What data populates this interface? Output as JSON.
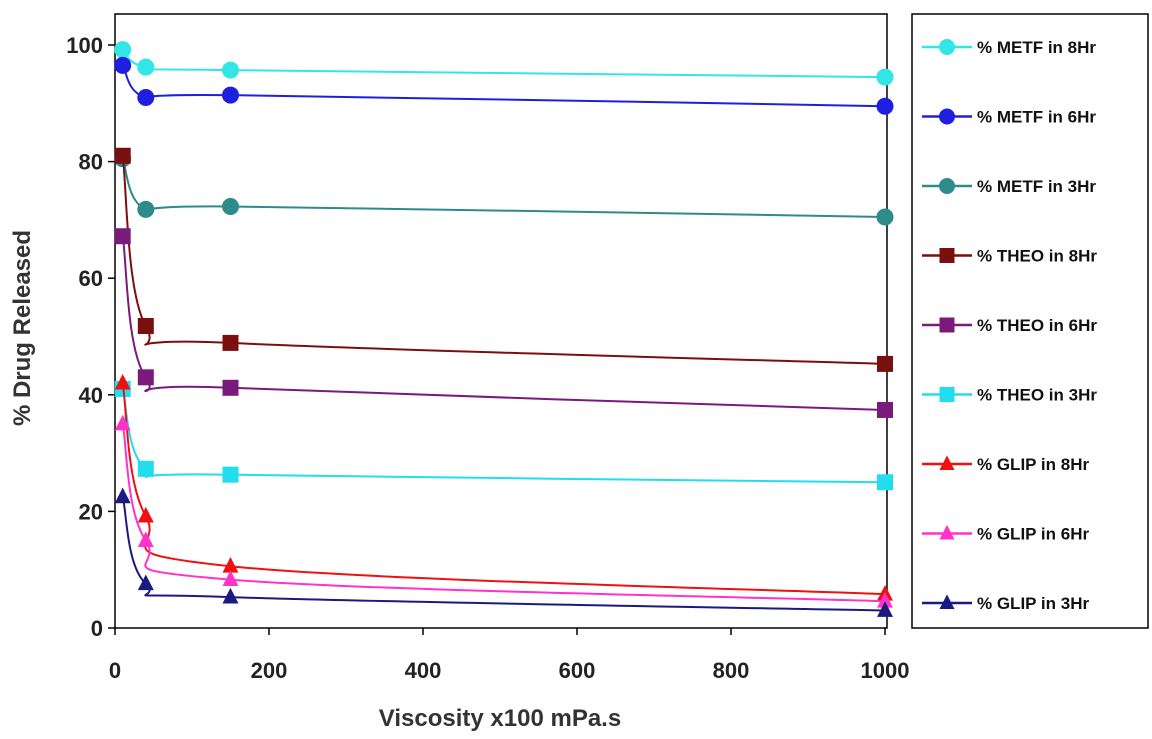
{
  "chart_data": {
    "type": "line",
    "title": "",
    "xlabel": "Viscosity x100 mPa.s",
    "ylabel": "% Drug Released",
    "xlim": [
      0,
      1000
    ],
    "ylim": [
      0,
      100
    ],
    "xticks": [
      "0",
      "200",
      "400",
      "600",
      "800",
      "1000"
    ],
    "yticks": [
      "0",
      "20",
      "40",
      "60",
      "80",
      "100"
    ],
    "grid": false,
    "legend_position": "right",
    "x": [
      10,
      40,
      150,
      1000
    ],
    "series": [
      {
        "name": "% METF  in 8Hr",
        "marker": "circle",
        "color": "#33E6E6",
        "values": [
          99.2,
          96.2,
          95.7,
          94.5
        ]
      },
      {
        "name": "% METF  in 6Hr",
        "marker": "circle",
        "color": "#1F1FE0",
        "values": [
          96.5,
          91.0,
          91.4,
          89.5
        ]
      },
      {
        "name": "% METF in 3Hr",
        "marker": "circle",
        "color": "#2E8B8B",
        "values": [
          80.5,
          71.8,
          72.3,
          70.5
        ]
      },
      {
        "name": "% THEO in 8Hr",
        "marker": "square",
        "color": "#7A0F0F",
        "values": [
          81.0,
          51.8,
          48.9,
          45.3
        ]
      },
      {
        "name": "% THEO in 6Hr",
        "marker": "square",
        "color": "#7A1A7A",
        "values": [
          67.2,
          43.0,
          41.2,
          37.4
        ]
      },
      {
        "name": "% THEO in 3Hr",
        "marker": "square",
        "color": "#22DDEE",
        "values": [
          41.0,
          27.3,
          26.3,
          25.0
        ]
      },
      {
        "name": "% GLIP in 8Hr",
        "marker": "triangle",
        "color": "#EE1111",
        "values": [
          42.0,
          19.2,
          10.6,
          5.8
        ]
      },
      {
        "name": "% GLIP in  6Hr",
        "marker": "triangle",
        "color": "#FF33CC",
        "values": [
          35.0,
          15.0,
          8.3,
          4.6
        ]
      },
      {
        "name": "% GLIP in 3Hr",
        "marker": "triangle",
        "color": "#1A1A80",
        "values": [
          22.5,
          7.6,
          5.3,
          3.0
        ]
      }
    ]
  }
}
